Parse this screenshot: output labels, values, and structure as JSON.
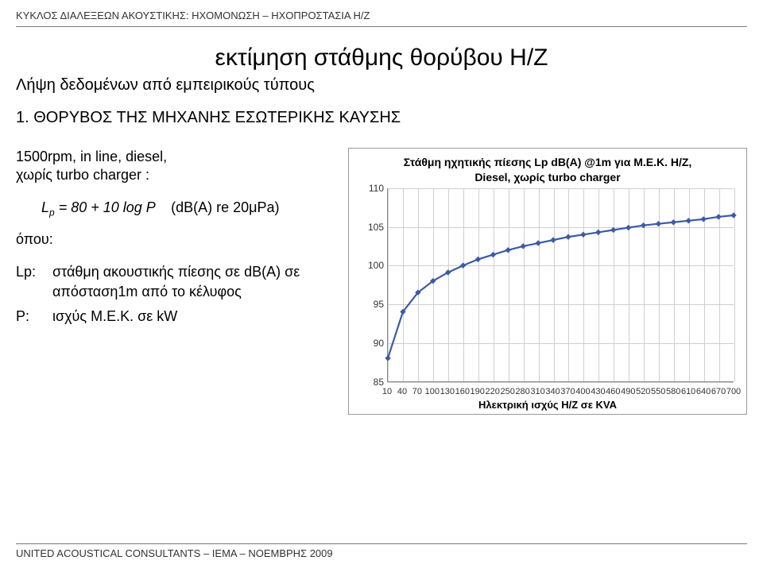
{
  "header": "ΚΥΚΛΟΣ ΔΙΑΛΕΞΕΩΝ ΑΚΟΥΣΤΙΚΗΣ: ΗΧΟΜΟΝΩΣΗ – ΗΧΟΠΡΟΣΤΑΣΙΑ Η/Ζ",
  "title": "εκτίμηση στάθμης θορύβου Η/Ζ",
  "subtitle": "Λήψη δεδομένων από εμπειρικούς τύπους",
  "section_heading": "1. ΘΟΡΥΒΟΣ ΤΗΣ ΜΗΧΑΝΗΣ ΕΣΩΤΕΡΙΚΗΣ ΚΑΥΣΗΣ",
  "intro_line_1": "1500rpm, in line, diesel,",
  "intro_line_2": "χωρίς turbo charger :",
  "formula_html": "L<span class='sub'>p</span> = 80 + 10 log P &nbsp;&nbsp; <span class='term'>(dB(A) re 20μPa)</span>",
  "where_label": "όπου:",
  "defs": [
    {
      "sym": "Lp:",
      "txt": "στάθμη ακουστικής πίεσης σε dB(A) σε απόσταση1m από το κέλυφος"
    },
    {
      "sym": "P:",
      "txt": "ισχύς Μ.Ε.Κ. σε kW"
    }
  ],
  "footer": "UNITED ACOUSTICAL CONSULTANTS – IEMA – ΝΟΕΜΒΡΗΣ 2009",
  "chart": {
    "type": "line",
    "title_line1": "Στάθμη ηχητικής πίεσης Lp dB(A) @1m για Μ.Ε.Κ. Η/Ζ,",
    "title_line2": "Diesel, χωρίς turbo charger",
    "x_axis_label": "Ηλεκτρική ισχύς Η/Ζ σε KVA",
    "ylim": [
      85,
      110
    ],
    "ytick_step": 5,
    "yticks": [
      85,
      90,
      95,
      100,
      105,
      110
    ],
    "x_values": [
      10,
      40,
      70,
      100,
      130,
      160,
      190,
      220,
      250,
      280,
      310,
      340,
      370,
      400,
      430,
      460,
      490,
      520,
      550,
      580,
      610,
      640,
      670,
      700
    ],
    "series_color": "#3c5aa6",
    "series_width": 2.2,
    "marker_fill": "#3c5aa6",
    "marker_radius": 3,
    "grid_color": "#cfcfcf",
    "background_color": "#ffffff",
    "axis_color": "#888888",
    "y_values": [
      88.0,
      94.0,
      96.5,
      98.0,
      99.1,
      100.0,
      100.8,
      101.4,
      102.0,
      102.5,
      102.9,
      103.3,
      103.7,
      104.0,
      104.3,
      104.6,
      104.9,
      105.2,
      105.4,
      105.6,
      105.8,
      106.0,
      106.3,
      106.5
    ]
  }
}
